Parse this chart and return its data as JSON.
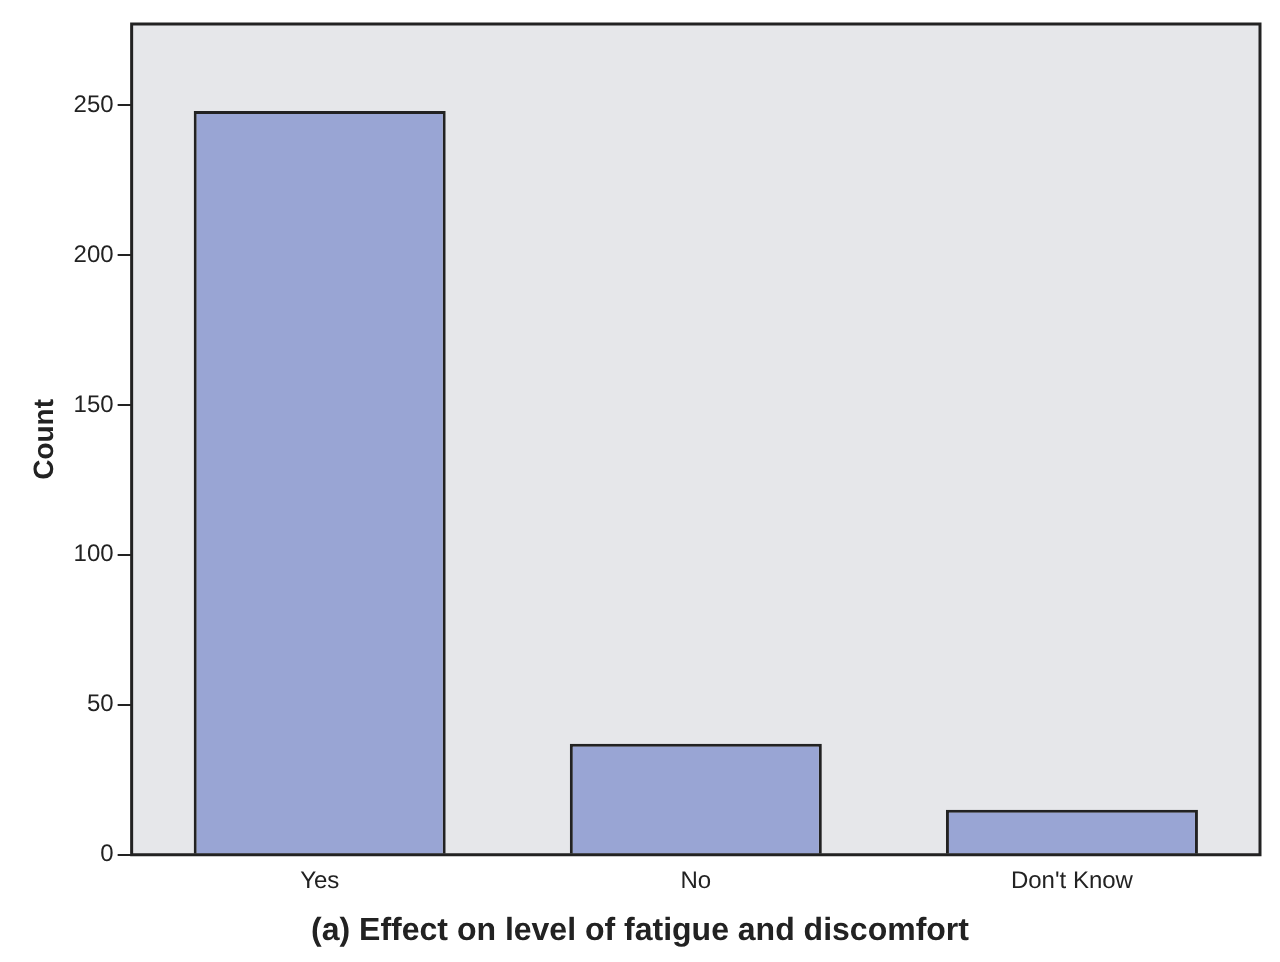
{
  "chart_data": {
    "type": "bar",
    "title": "(a) Effect on level of fatigue and discomfort",
    "ylabel": "Count",
    "categories": [
      "Yes",
      "No",
      "Don't Know"
    ],
    "values": [
      248,
      37,
      15
    ],
    "color": "#99a5d4",
    "ylim": [
      0,
      277
    ],
    "yticks": [
      0,
      50,
      100,
      150,
      200,
      250
    ],
    "grid": false,
    "legend": false
  }
}
